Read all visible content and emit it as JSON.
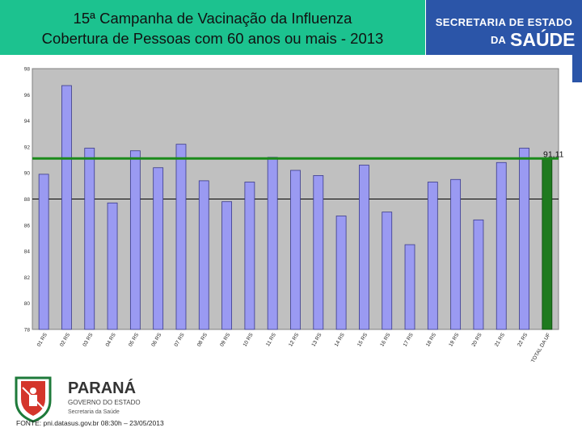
{
  "header": {
    "title_line1": "15ª Campanha de Vacinação da Influenza",
    "title_line2": "Cobertura de Pessoas com 60 anos ou mais - 2013"
  },
  "brand": {
    "line1": "SECRETARIA DE ESTADO",
    "da": "DA",
    "saude": "SAÚDE",
    "color": "#2b55a8"
  },
  "footer": {
    "logo_name": "PARANÁ",
    "logo_sub1": "GOVERNO DO ESTADO",
    "logo_sub2": "Secretaria da Saúde",
    "source": "FONTE: pni.datasus.gov.br 08:30h – 23/05/2013"
  },
  "colors": {
    "title_bg": "#1cc28f",
    "bar": "#9a9af2",
    "total_bar": "#1e7a1e",
    "target_line": "#1b8a1b",
    "plot_bg": "#c0c0c0"
  },
  "chart_data": {
    "type": "bar",
    "categories": [
      "01 RS",
      "02 RS",
      "03 RS",
      "04 RS",
      "05 RS",
      "06 RS",
      "07 RS",
      "08 RS",
      "09 RS",
      "10 RS",
      "11 RS",
      "12 RS",
      "13 RS",
      "14 RS",
      "15 RS",
      "16 RS",
      "17 RS",
      "18 RS",
      "19 RS",
      "20 RS",
      "21 RS",
      "22 RS",
      "TOTAL DA UF"
    ],
    "values": [
      89.9,
      96.7,
      91.9,
      87.7,
      91.7,
      90.4,
      92.2,
      89.4,
      87.8,
      89.3,
      91.2,
      90.2,
      89.8,
      86.7,
      90.6,
      87.0,
      84.5,
      89.3,
      89.5,
      86.4,
      90.8,
      91.9,
      91.11
    ],
    "reference_line": {
      "value": 91.11,
      "label": "91,11"
    },
    "yticks": [
      "78",
      "80",
      "82",
      "84",
      "86",
      "88",
      "90",
      "92",
      "94",
      "96",
      "98"
    ],
    "ylim": [
      78,
      98
    ],
    "grid": "horizontal at 88",
    "legend": "none",
    "title": "",
    "xlabel": "",
    "ylabel": ""
  }
}
